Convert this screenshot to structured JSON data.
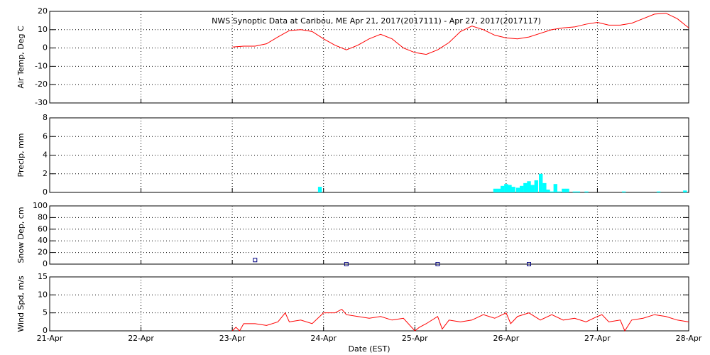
{
  "chart_data": [
    {
      "type": "line",
      "title": "NWS Synoptic Data at Caribou, ME   Apr 21, 2017(2017111) - Apr 27, 2017(2017117)",
      "ylabel": "Air Temp, Deg C",
      "xlim": [
        0,
        7
      ],
      "xticks": [
        0,
        1,
        2,
        3,
        4,
        5,
        6,
        7
      ],
      "ylim": [
        -30,
        20
      ],
      "yticks": [
        -30,
        -20,
        -10,
        0,
        10,
        20
      ],
      "grid": true,
      "x": [
        2.0,
        2.125,
        2.25,
        2.375,
        2.5,
        2.625,
        2.75,
        2.875,
        3.0,
        3.125,
        3.25,
        3.375,
        3.5,
        3.625,
        3.75,
        3.875,
        4.0,
        4.125,
        4.25,
        4.375,
        4.5,
        4.625,
        4.75,
        4.875,
        5.0,
        5.125,
        5.25,
        5.375,
        5.5,
        5.625,
        5.75,
        5.875,
        6.0,
        6.125,
        6.25,
        6.375,
        6.5,
        6.625,
        6.75,
        6.875,
        7.0
      ],
      "series": [
        {
          "name": "Air Temp",
          "color": "#ff0000",
          "values": [
            0.5,
            1,
            1,
            2.3,
            6,
            9.5,
            10,
            9,
            5,
            1.5,
            -1,
            1.5,
            5,
            7.5,
            5,
            0,
            -2.5,
            -3.5,
            -1,
            3,
            9,
            12,
            10,
            7,
            5.5,
            5,
            6,
            8,
            10,
            11,
            11.5,
            13,
            14,
            12.5,
            12.5,
            13.5,
            16,
            18.5,
            19,
            16,
            11
          ]
        }
      ]
    },
    {
      "type": "bar",
      "ylabel": "Precip, mm",
      "xlim": [
        0,
        7
      ],
      "xticks": [
        0,
        1,
        2,
        3,
        4,
        5,
        6,
        7
      ],
      "ylim": [
        0,
        8
      ],
      "yticks": [
        0,
        2,
        4,
        6,
        8
      ],
      "grid": true,
      "bar_width": 0.0417,
      "x": [
        2.96,
        4.88,
        4.92,
        4.96,
        5.0,
        5.04,
        5.08,
        5.13,
        5.17,
        5.21,
        5.25,
        5.29,
        5.33,
        5.38,
        5.42,
        5.46,
        5.5,
        5.54,
        5.58,
        5.63,
        5.67,
        5.75,
        5.79,
        5.88,
        6.29,
        6.67,
        6.96
      ],
      "series": [
        {
          "name": "Precip",
          "color": "#00ffff",
          "values": [
            0.6,
            0.4,
            0.4,
            0.7,
            0.9,
            0.8,
            0.6,
            0.5,
            0.7,
            1.0,
            1.2,
            0.8,
            1.3,
            2.0,
            1.0,
            0.3,
            0.1,
            0.9,
            0.1,
            0.4,
            0.4,
            0.1,
            0.1,
            0.1,
            0.1,
            0.1,
            0.2
          ]
        }
      ]
    },
    {
      "type": "scatter",
      "ylabel": "Snow Dep, cm",
      "xlim": [
        0,
        7
      ],
      "xticks": [
        0,
        1,
        2,
        3,
        4,
        5,
        6,
        7
      ],
      "ylim": [
        0,
        100
      ],
      "yticks": [
        0,
        20,
        40,
        60,
        80,
        100
      ],
      "grid": true,
      "x": [
        2.25,
        3.25,
        4.25,
        5.25
      ],
      "series": [
        {
          "name": "Snow Depth",
          "color": "#000080",
          "values": [
            7,
            0,
            0,
            0
          ]
        }
      ]
    },
    {
      "type": "line",
      "ylabel": "Wind Spd, m/s",
      "xlabel": "Date (EST)",
      "xlim": [
        0,
        7
      ],
      "xticks": [
        {
          "value": 0,
          "label": "21-Apr"
        },
        {
          "value": 1,
          "label": "22-Apr"
        },
        {
          "value": 2,
          "label": "23-Apr"
        },
        {
          "value": 3,
          "label": "24-Apr"
        },
        {
          "value": 4,
          "label": "25-Apr"
        },
        {
          "value": 5,
          "label": "26-Apr"
        },
        {
          "value": 6,
          "label": "27-Apr"
        },
        {
          "value": 7,
          "label": "28-Apr"
        }
      ],
      "ylim": [
        0,
        15
      ],
      "yticks": [
        0,
        5,
        10,
        15
      ],
      "grid": true,
      "x": [
        2.0,
        2.04,
        2.08,
        2.125,
        2.25,
        2.375,
        2.5,
        2.58,
        2.625,
        2.75,
        2.875,
        3.0,
        3.125,
        3.2,
        3.25,
        3.375,
        3.5,
        3.625,
        3.75,
        3.875,
        4.0,
        4.05,
        4.125,
        4.25,
        4.3,
        4.375,
        4.5,
        4.625,
        4.75,
        4.875,
        5.0,
        5.05,
        5.125,
        5.25,
        5.375,
        5.5,
        5.625,
        5.75,
        5.875,
        6.0,
        6.05,
        6.125,
        6.25,
        6.3,
        6.375,
        6.5,
        6.625,
        6.75,
        6.875,
        7.0
      ],
      "series": [
        {
          "name": "Wind Speed",
          "color": "#ff0000",
          "values": [
            0,
            1,
            0,
            2,
            2,
            1.5,
            2.5,
            5,
            2.5,
            3,
            2,
            5,
            5,
            6,
            4.5,
            4,
            3.5,
            4,
            3,
            3.5,
            0,
            1,
            2,
            4,
            0.5,
            3,
            2.5,
            3,
            4.5,
            3.5,
            5,
            2,
            4,
            5,
            3,
            4.5,
            3,
            3.5,
            2.5,
            4,
            4.5,
            2.5,
            3,
            0,
            3,
            3.5,
            4.5,
            4,
            3,
            2.5
          ]
        }
      ]
    }
  ]
}
